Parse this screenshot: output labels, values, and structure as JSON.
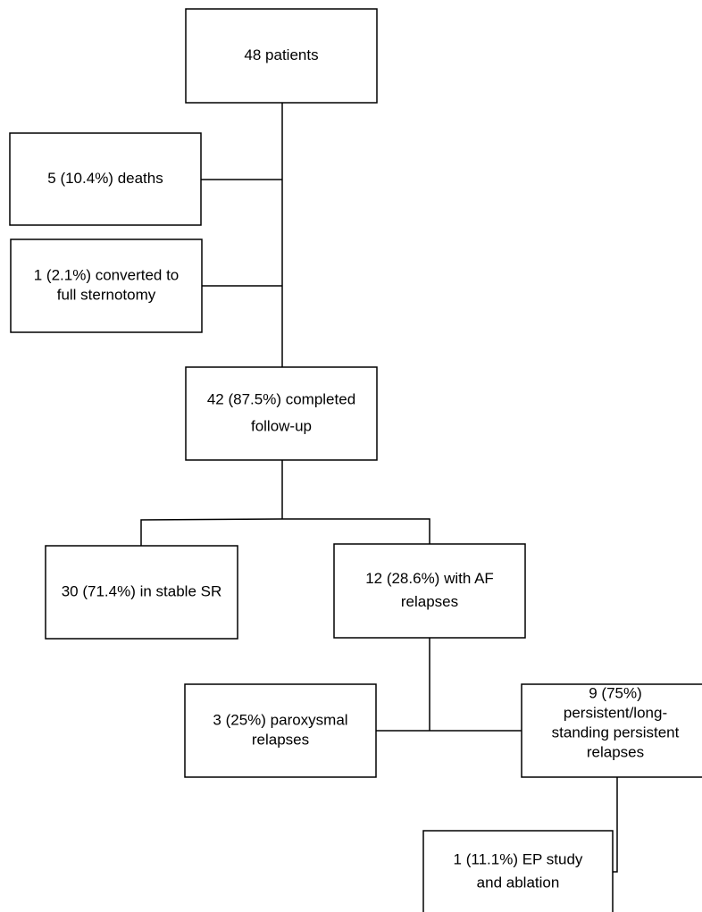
{
  "nodes": [
    {
      "lines": [
        "48 patients"
      ]
    },
    {
      "lines": [
        "5 (10.4%) deaths"
      ]
    },
    {
      "lines": [
        "1 (2.1%) converted to",
        "full sternotomy"
      ]
    },
    {
      "lines": [
        "42 (87.5%) completed",
        "follow-up"
      ]
    },
    {
      "lines": [
        "30 (71.4%) in stable SR"
      ]
    },
    {
      "lines": [
        "12 (28.6%) with AF",
        "relapses"
      ]
    },
    {
      "lines": [
        "3 (25%) paroxysmal",
        "relapses"
      ]
    },
    {
      "lines": [
        "9 (75%)",
        "persistent/long-",
        "standing persistent",
        "relapses"
      ]
    },
    {
      "lines": [
        "1 (11.1%) EP study",
        "and ablation"
      ]
    }
  ]
}
